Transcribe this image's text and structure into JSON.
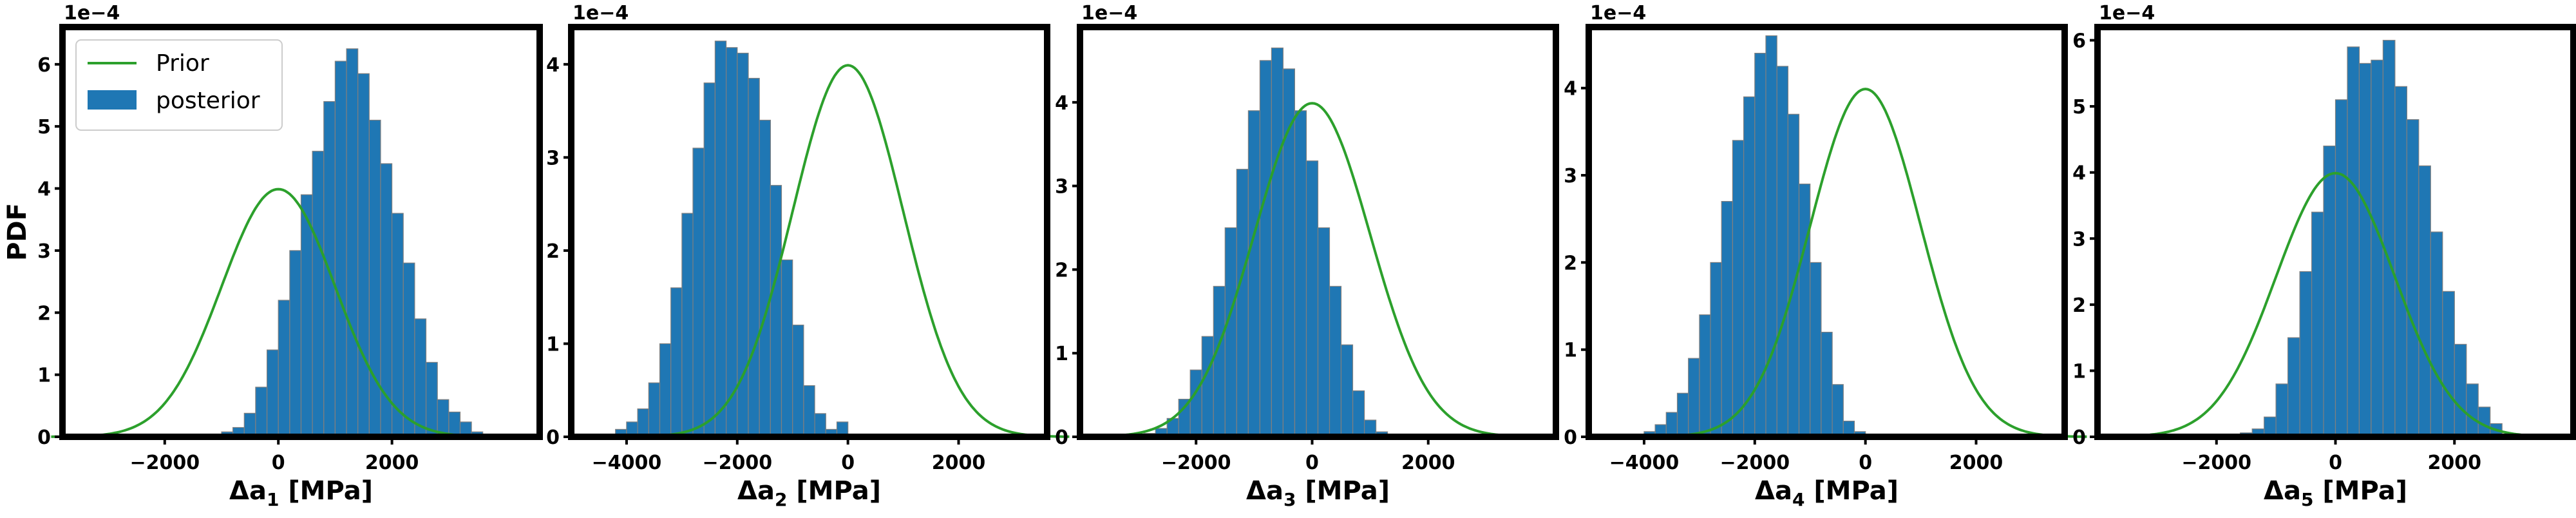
{
  "chart_data": [
    {
      "type": "bar",
      "offset_label": "1e−4",
      "ylabel": "PDF",
      "xlabel_main": "Δa",
      "xlabel_sub": "1",
      "xlabel_unit": " [MPa]",
      "xlim": [
        -3800,
        4600
      ],
      "ylim": [
        0,
        0.00066
      ],
      "x_ticks": [
        {
          "value": -2000,
          "label": "−2000"
        },
        {
          "value": 0,
          "label": "0"
        },
        {
          "value": 2000,
          "label": "2000"
        }
      ],
      "y_ticks": [
        {
          "value": 0,
          "label": "0"
        },
        {
          "value": 0.0001,
          "label": "1"
        },
        {
          "value": 0.0002,
          "label": "2"
        },
        {
          "value": 0.0003,
          "label": "3"
        },
        {
          "value": 0.0004,
          "label": "4"
        },
        {
          "value": 0.0005,
          "label": "5"
        },
        {
          "value": 0.0006,
          "label": "6"
        }
      ],
      "prior": {
        "name": "Prior",
        "mean": 0,
        "std": 1000
      },
      "posterior": {
        "name": "posterior",
        "bin_start": -1200,
        "bin_width": 200,
        "values": [
          4e-06,
          8e-06,
          1.5e-05,
          3.8e-05,
          8e-05,
          0.00014,
          0.00022,
          0.0003,
          0.00039,
          0.00046,
          0.00054,
          0.000605,
          0.000625,
          0.000585,
          0.00051,
          0.00044,
          0.00036,
          0.00028,
          0.00019,
          0.00012,
          6e-05,
          4e-05,
          2.4e-05,
          8e-06
        ]
      },
      "legend": {
        "location": "upper left",
        "prior_label": "Prior",
        "posterior_label": "posterior"
      }
    },
    {
      "type": "bar",
      "offset_label": "1e−4",
      "xlabel_main": "Δa",
      "xlabel_sub": "2",
      "xlabel_unit": " [MPa]",
      "xlim": [
        -5000,
        3600
      ],
      "ylim": [
        0,
        0.00044
      ],
      "x_ticks": [
        {
          "value": -4000,
          "label": "−4000"
        },
        {
          "value": -2000,
          "label": "−2000"
        },
        {
          "value": 0,
          "label": "0"
        },
        {
          "value": 2000,
          "label": "2000"
        }
      ],
      "y_ticks": [
        {
          "value": 0,
          "label": "0"
        },
        {
          "value": 0.0001,
          "label": "1"
        },
        {
          "value": 0.0002,
          "label": "2"
        },
        {
          "value": 0.0003,
          "label": "3"
        },
        {
          "value": 0.0004,
          "label": "4"
        }
      ],
      "prior": {
        "name": "Prior",
        "mean": 0,
        "std": 1000
      },
      "posterior": {
        "name": "posterior",
        "bin_start": -4400,
        "bin_width": 200,
        "values": [
          3e-06,
          8e-06,
          1.6e-05,
          3e-05,
          5.8e-05,
          0.0001,
          0.00016,
          0.00024,
          0.00031,
          0.00038,
          0.000425,
          0.000418,
          0.000412,
          0.000385,
          0.00034,
          0.00027,
          0.00019,
          0.00012,
          5.5e-05,
          2.5e-05,
          8e-06,
          1.6e-05
        ]
      }
    },
    {
      "type": "bar",
      "offset_label": "1e−4",
      "xlabel_main": "Δa",
      "xlabel_sub": "3",
      "xlabel_unit": " [MPa]",
      "xlim": [
        -4000,
        4200
      ],
      "ylim": [
        0,
        0.00049
      ],
      "x_ticks": [
        {
          "value": -2000,
          "label": "−2000"
        },
        {
          "value": 0,
          "label": "0"
        },
        {
          "value": 2000,
          "label": "2000"
        }
      ],
      "y_ticks": [
        {
          "value": 0,
          "label": "0"
        },
        {
          "value": 0.0001,
          "label": "1"
        },
        {
          "value": 0.0002,
          "label": "2"
        },
        {
          "value": 0.0003,
          "label": "3"
        },
        {
          "value": 0.0004,
          "label": "4"
        }
      ],
      "prior": {
        "name": "Prior",
        "mean": 0,
        "std": 1000
      },
      "posterior": {
        "name": "posterior",
        "bin_start": -2900,
        "bin_width": 200,
        "values": [
          4e-06,
          1e-05,
          2.2e-05,
          4.5e-05,
          8e-05,
          0.00012,
          0.00018,
          0.00025,
          0.00032,
          0.00039,
          0.00045,
          0.000465,
          0.00044,
          0.00039,
          0.00033,
          0.00025,
          0.00018,
          0.00011,
          5.5e-05,
          2e-05,
          6e-06
        ]
      }
    },
    {
      "type": "bar",
      "offset_label": "1e−4",
      "xlabel_main": "Δa",
      "xlabel_sub": "4",
      "xlabel_unit": " [MPa]",
      "xlim": [
        -5000,
        3600
      ],
      "ylim": [
        0,
        0.00047
      ],
      "x_ticks": [
        {
          "value": -4000,
          "label": "−4000"
        },
        {
          "value": -2000,
          "label": "−2000"
        },
        {
          "value": 0,
          "label": "0"
        },
        {
          "value": 2000,
          "label": "2000"
        }
      ],
      "y_ticks": [
        {
          "value": 0,
          "label": "0"
        },
        {
          "value": 0.0001,
          "label": "1"
        },
        {
          "value": 0.0002,
          "label": "2"
        },
        {
          "value": 0.0003,
          "label": "3"
        },
        {
          "value": 0.0004,
          "label": "4"
        }
      ],
      "prior": {
        "name": "Prior",
        "mean": 0,
        "std": 1000
      },
      "posterior": {
        "name": "posterior",
        "bin_start": -4000,
        "bin_width": 200,
        "values": [
          6e-06,
          1.4e-05,
          2.8e-05,
          5e-05,
          9e-05,
          0.00014,
          0.0002,
          0.00027,
          0.00034,
          0.00039,
          0.00044,
          0.00046,
          0.000425,
          0.00037,
          0.00029,
          0.0002,
          0.00012,
          6e-05,
          1.8e-05,
          6e-06
        ]
      }
    },
    {
      "type": "bar",
      "offset_label": "1e−4",
      "xlabel_main": "Δa",
      "xlabel_sub": "5",
      "xlabel_unit": " [MPa]",
      "xlim": [
        -4000,
        4000
      ],
      "ylim": [
        0,
        0.00062
      ],
      "x_ticks": [
        {
          "value": -2000,
          "label": "−2000"
        },
        {
          "value": 0,
          "label": "0"
        },
        {
          "value": 2000,
          "label": "2000"
        }
      ],
      "y_ticks": [
        {
          "value": 0,
          "label": "0"
        },
        {
          "value": 0.0001,
          "label": "1"
        },
        {
          "value": 0.0002,
          "label": "2"
        },
        {
          "value": 0.0003,
          "label": "3"
        },
        {
          "value": 0.0004,
          "label": "4"
        },
        {
          "value": 0.0005,
          "label": "5"
        },
        {
          "value": 0.0006,
          "label": "6"
        }
      ],
      "prior": {
        "name": "Prior",
        "mean": 0,
        "std": 1000
      },
      "posterior": {
        "name": "posterior",
        "bin_start": -1600,
        "bin_width": 200,
        "values": [
          6e-06,
          1.2e-05,
          3e-05,
          8e-05,
          0.00015,
          0.00025,
          0.00034,
          0.00044,
          0.00051,
          0.00059,
          0.000565,
          0.00057,
          0.0006,
          0.00053,
          0.00048,
          0.00041,
          0.00031,
          0.00022,
          0.00014,
          8e-05,
          4.5e-05,
          2e-05
        ]
      }
    }
  ]
}
